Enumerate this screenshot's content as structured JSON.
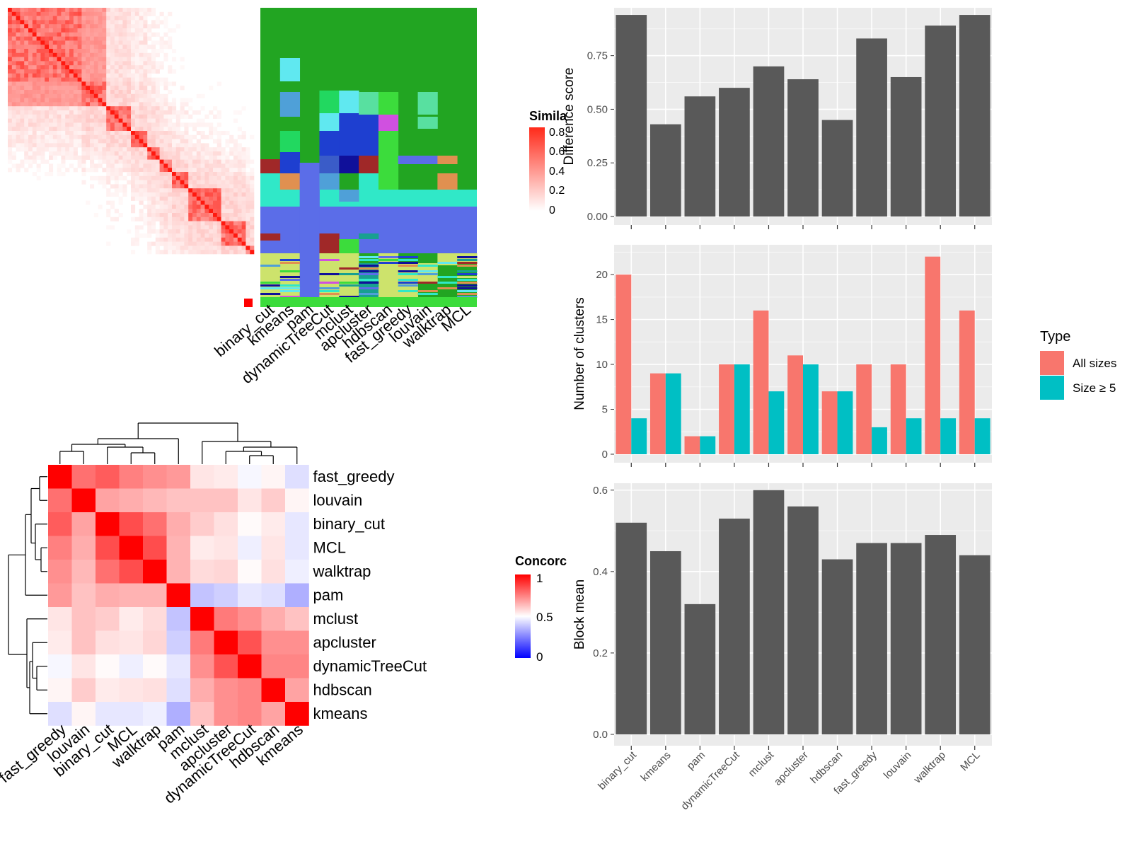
{
  "colors": {
    "panel_bg": "#ebebeb",
    "grid": "#ffffff",
    "bar_dark": "#595959",
    "all_sizes": "#f8766d",
    "size_ge5": "#00bfc4",
    "heat_high": "#ff0000",
    "heat_mid": "#ffffff",
    "heat_low": "#0000ff"
  },
  "similarity_legend": {
    "title": "Simila",
    "ticks": [
      "0.8",
      "0.6",
      "0.4",
      "0.2",
      "0"
    ]
  },
  "concordance_legend": {
    "title": "Concorc",
    "ticks": [
      "1",
      "0.5",
      "0"
    ]
  },
  "class_columns": [
    "binary_cut",
    "kmeans",
    "pam",
    "dynamicTreeCut",
    "mclust",
    "apcluster",
    "hdbscan",
    "fast_greedy",
    "louvain",
    "walktrap",
    "MCL"
  ],
  "concordance": {
    "rows": [
      "fast_greedy",
      "louvain",
      "binary_cut",
      "MCL",
      "walktrap",
      "pam",
      "mclust",
      "apcluster",
      "dynamicTreeCut",
      "hdbscan",
      "kmeans"
    ],
    "columns": [
      "fast_greedy",
      "louvain",
      "binary_cut",
      "MCL",
      "walktrap",
      "pam",
      "mclust",
      "apcluster",
      "dynamicTreeCut",
      "hdbscan",
      "kmeans"
    ],
    "values": [
      [
        1.0,
        0.78,
        0.82,
        0.75,
        0.72,
        0.7,
        0.55,
        0.54,
        0.48,
        0.52,
        0.42
      ],
      [
        0.78,
        1.0,
        0.68,
        0.66,
        0.64,
        0.62,
        0.62,
        0.62,
        0.55,
        0.6,
        0.52
      ],
      [
        0.82,
        0.68,
        1.0,
        0.85,
        0.78,
        0.66,
        0.6,
        0.56,
        0.51,
        0.54,
        0.44
      ],
      [
        0.75,
        0.66,
        0.85,
        1.0,
        0.85,
        0.65,
        0.54,
        0.55,
        0.46,
        0.55,
        0.44
      ],
      [
        0.72,
        0.64,
        0.78,
        0.85,
        1.0,
        0.65,
        0.57,
        0.58,
        0.51,
        0.56,
        0.46
      ],
      [
        0.7,
        0.62,
        0.66,
        0.65,
        0.65,
        1.0,
        0.35,
        0.38,
        0.44,
        0.42,
        0.3
      ],
      [
        0.55,
        0.62,
        0.6,
        0.54,
        0.57,
        0.35,
        1.0,
        0.76,
        0.72,
        0.66,
        0.62
      ],
      [
        0.54,
        0.62,
        0.56,
        0.55,
        0.58,
        0.38,
        0.76,
        1.0,
        0.84,
        0.72,
        0.72
      ],
      [
        0.48,
        0.55,
        0.51,
        0.46,
        0.51,
        0.44,
        0.72,
        0.84,
        1.0,
        0.74,
        0.74
      ],
      [
        0.52,
        0.6,
        0.54,
        0.55,
        0.56,
        0.42,
        0.66,
        0.72,
        0.74,
        1.0,
        0.68
      ],
      [
        0.42,
        0.52,
        0.44,
        0.44,
        0.46,
        0.3,
        0.62,
        0.72,
        0.74,
        0.68,
        1.0
      ]
    ]
  },
  "chart_data": [
    {
      "type": "bar",
      "xlabel": "",
      "ylabel": "Difference score",
      "categories": [
        "binary_cut",
        "kmeans",
        "pam",
        "dynamicTreeCut",
        "mclust",
        "apcluster",
        "hdbscan",
        "fast_greedy",
        "louvain",
        "walktrap",
        "MCL"
      ],
      "values": [
        0.94,
        0.43,
        0.56,
        0.6,
        0.7,
        0.64,
        0.45,
        0.83,
        0.65,
        0.89,
        0.94
      ],
      "ylim": [
        0,
        0.96
      ],
      "yticks": [
        "0.00",
        "0.25",
        "0.50",
        "0.75"
      ],
      "grid": true
    },
    {
      "type": "bar",
      "xlabel": "",
      "ylabel": "Number of clusters",
      "categories": [
        "binary_cut",
        "kmeans",
        "pam",
        "dynamicTreeCut",
        "mclust",
        "apcluster",
        "hdbscan",
        "fast_greedy",
        "louvain",
        "walktrap",
        "MCL"
      ],
      "series": [
        {
          "name": "All sizes",
          "values": [
            20,
            9,
            2,
            10,
            16,
            11,
            7,
            10,
            10,
            22,
            16
          ]
        },
        {
          "name": "Size ≥ 5",
          "values": [
            4,
            9,
            2,
            10,
            7,
            10,
            7,
            3,
            4,
            4,
            4
          ]
        }
      ],
      "ylim": [
        0,
        23
      ],
      "yticks": [
        "0",
        "5",
        "10",
        "15",
        "20"
      ],
      "legend": {
        "title": "Type",
        "position": "right"
      },
      "grid": true
    },
    {
      "type": "bar",
      "xlabel": "",
      "ylabel": "Block mean",
      "categories": [
        "binary_cut",
        "kmeans",
        "pam",
        "dynamicTreeCut",
        "mclust",
        "apcluster",
        "hdbscan",
        "fast_greedy",
        "louvain",
        "walktrap",
        "MCL"
      ],
      "values": [
        0.52,
        0.45,
        0.32,
        0.53,
        0.6,
        0.56,
        0.43,
        0.47,
        0.47,
        0.49,
        0.44
      ],
      "ylim": [
        0,
        0.61
      ],
      "yticks": [
        "0.0",
        "0.2",
        "0.4",
        "0.6"
      ],
      "grid": true
    }
  ]
}
